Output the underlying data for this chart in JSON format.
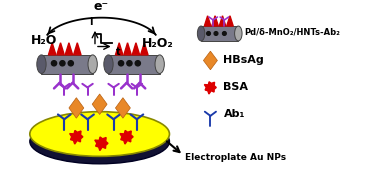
{
  "bg_color": "#ffffff",
  "tube_color": "#7a7a8a",
  "red_spike_color": "#cc0000",
  "black_dot_color": "#111111",
  "purple_ab2_color": "#9932CC",
  "orange_diamond_color": "#E88828",
  "yellow_disk_color": "#FFFF00",
  "dark_disk_color": "#1a1a4a",
  "blue_ab1_color": "#1a3aaa",
  "red_bsa_color": "#dd0000",
  "legend_tube_label": "Pd/δ-MnO₂/HNTs-Ab₂",
  "legend_hbsag_label": "HBsAg",
  "legend_bsa_label": "BSA",
  "legend_ab1_label": "Ab₁",
  "legend_auNP_label": "Electroplate Au NPs",
  "h2o_label": "H₂O",
  "h2o2_label": "H₂O₂",
  "e_label": "e⁻",
  "i_label": "I",
  "t_label": "t"
}
